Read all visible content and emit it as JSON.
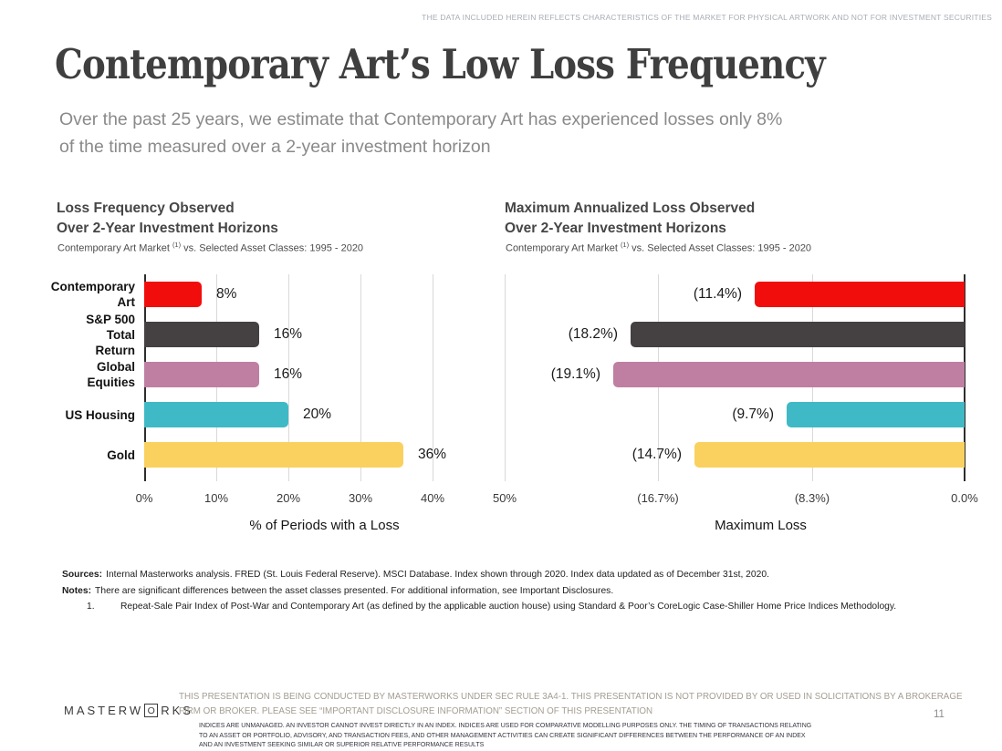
{
  "slide": {
    "top_disclaimer": "THE DATA INCLUDED HEREIN REFLECTS CHARACTERISTICS OF THE MARKET FOR PHYSICAL ARTWORK AND NOT FOR INVESTMENT SECURITIES",
    "title": "Contemporary Art’s Low Loss Frequency",
    "subtitle": [
      "Over the past 25 years, we estimate that Contemporary Art has experienced losses only 8%",
      "of the time measured over a 2-year investment horizon"
    ],
    "page_number": "11"
  },
  "chart_data": [
    {
      "type": "bar",
      "orientation": "horizontal",
      "title": [
        "Loss Frequency Observed",
        "Over 2-Year Investment Horizons"
      ],
      "subtitle_prefix": "Contemporary Art Market ",
      "subtitle_sup": "(1)",
      "subtitle_suffix": " vs. Selected Asset Classes: 1995 - 2020",
      "categories": [
        "Contemporary\nArt",
        "S&P 500 Total\nReturn",
        "Global Equities",
        "US Housing",
        "Gold"
      ],
      "values": [
        8,
        16,
        16,
        20,
        36
      ],
      "value_labels": [
        "8%",
        "16%",
        "16%",
        "20%",
        "36%"
      ],
      "colors": [
        "#f20d0d",
        "#454041",
        "#bf7fa2",
        "#3fb9c5",
        "#fad15e"
      ],
      "xlabel": "% of Periods with a Loss",
      "xlim": [
        0,
        50
      ],
      "x_ticks": [
        "0%",
        "10%",
        "20%",
        "30%",
        "40%",
        "50%"
      ],
      "x_tick_values": [
        0,
        10,
        20,
        30,
        40,
        50
      ],
      "bars_anchor": "left",
      "show_category_labels": true,
      "grid": true,
      "legend": "none"
    },
    {
      "type": "bar",
      "orientation": "horizontal",
      "title": [
        "Maximum Annualized Loss Observed",
        "Over 2-Year Investment Horizons"
      ],
      "subtitle_prefix": "Contemporary Art Market ",
      "subtitle_sup": "(1)",
      "subtitle_suffix": " vs. Selected Asset Classes: 1995 - 2020",
      "categories": [
        "Contemporary\nArt",
        "S&P 500 Total\nReturn",
        "Global Equities",
        "US Housing",
        "Gold"
      ],
      "values": [
        11.4,
        18.2,
        19.1,
        9.7,
        14.7
      ],
      "value_labels": [
        "(11.4%)",
        "(18.2%)",
        "(19.1%)",
        "(9.7%)",
        "(14.7%)"
      ],
      "colors": [
        "#f20d0d",
        "#454041",
        "#bf7fa2",
        "#3fb9c5",
        "#fad15e"
      ],
      "xlabel": "Maximum Loss",
      "xlim": [
        0,
        22.2
      ],
      "x_ticks": [
        "(16.7%)",
        "(8.3%)",
        "0.0%"
      ],
      "x_tick_values": [
        16.7,
        8.3,
        0
      ],
      "bars_anchor": "right",
      "show_category_labels": false,
      "grid": true,
      "legend": "none"
    }
  ],
  "notes": {
    "rows": [
      {
        "label": "Sources:",
        "text": "Internal Masterworks analysis. FRED (St. Louis Federal Reserve). MSCI Database. Index shown through 2020. Index data updated as of December 31st, 2020."
      },
      {
        "label": "Notes:",
        "text": "There are significant differences between the asset classes presented. For additional information, see Important Disclosures."
      },
      {
        "label": "1.",
        "text": "Repeat-Sale Pair Index of Post-War and Contemporary Art (as defined by the applicable auction house) using Standard & Poor’s CoreLogic Case-Shiller Home Price Indices Methodology."
      }
    ]
  },
  "footer": {
    "logo": {
      "part1": "MASTERW",
      "boxed_letter": "O",
      "part2": "RKS"
    },
    "disclaimer_primary": [
      "THIS PRESENTATION IS BEING CONDUCTED BY MASTERWORKS UNDER SEC RULE 3A4-1. THIS PRESENTATION IS NOT PROVIDED BY OR USED IN SOLICITATIONS BY A BROKERAGE",
      "FIRM OR BROKER. PLEASE SEE “IMPORTANT DISCLOSURE INFORMATION” SECTION OF THIS PRESENTATION"
    ],
    "disclaimer_secondary": "INDICES ARE UNMANAGED. AN INVESTOR CANNOT INVEST DIRECTLY IN AN INDEX. INDICES ARE USED FOR COMPARATIVE MODELLING PURPOSES ONLY. THE TIMING OF TRANSACTIONS RELATING TO AN ASSET OR PORTFOLIO, ADVISORY, AND TRANSACTION FEES, AND OTHER MANAGEMENT ACTIVITIES CAN CREATE SIGNIFICANT DIFFERENCES BETWEEN THE PERFORMANCE OF AN INDEX AND AN INVESTMENT SEEKING SIMILAR OR SUPERIOR RELATIVE PERFORMANCE RESULTS"
  }
}
